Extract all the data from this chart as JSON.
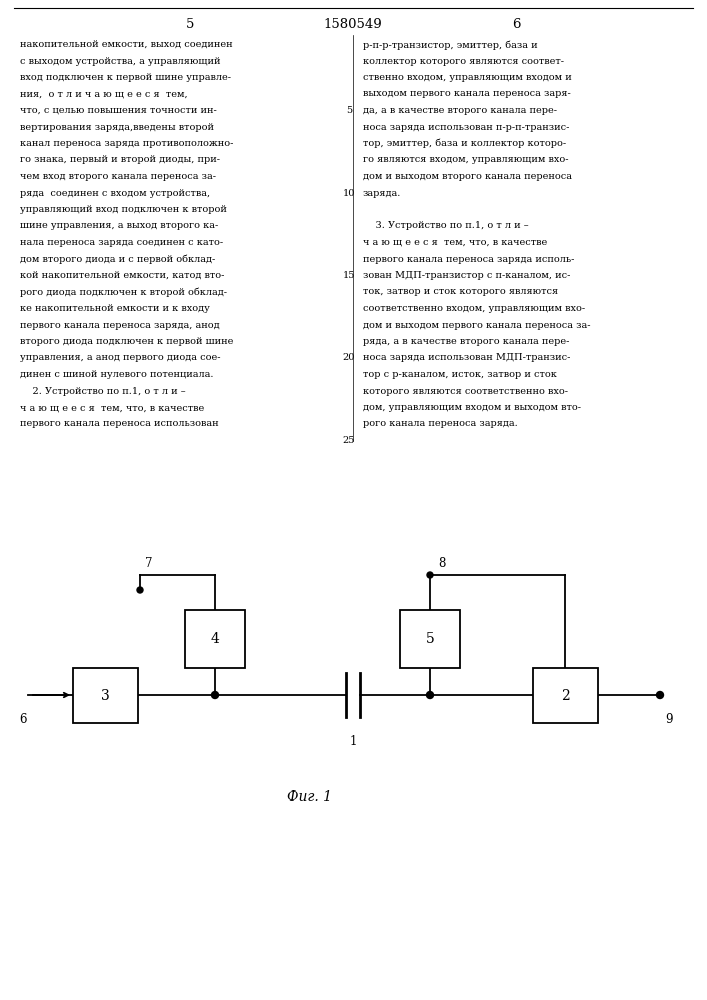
{
  "page_number_left": "5",
  "patent_number": "1580549",
  "page_number_right": "6",
  "text_left": [
    "накопительной емкости, выход соединен",
    "с выходом устройства, а управляющий",
    "вход подключен к первой шине управле-",
    "ния,  о т л и ч а ю щ е е с я  тем,",
    "что, с целью повышения точности ин-",
    "вертирования заряда,введены второй",
    "канал переноса заряда противоположно-",
    "го знака, первый и второй диоды, при-",
    "чем вход второго канала переноса за-",
    "ряда  соединен с входом устройства,",
    "управляющий вход подключен к второй",
    "шине управления, а выход второго ка-",
    "нала переноса заряда соединен с като-",
    "дом второго диода и с первой обклад-",
    "кой накопительной емкости, катод вто-",
    "рого диода подключен к второй обклад-",
    "ке накопительной емкости и к входу",
    "первого канала переноса заряда, анод",
    "второго диода подключен к первой шине",
    "управления, а анод первого диода сое-",
    "динен с шиной нулевого потенциала.",
    "    2. Устройство по п.1, о т л и –",
    "ч а ю щ е е с я  тем, что, в качестве",
    "первого канала переноса использован"
  ],
  "text_right": [
    "р-п-р-транзистор, эмиттер, база и",
    "коллектор которого являются соответ-",
    "ственно входом, управляющим входом и",
    "выходом первого канала переноса заря-",
    "да, а в качестве второго канала пере-",
    "носа заряда использован п-р-п-транзис-",
    "тор, эмиттер, база и коллектор которо-",
    "го являются входом, управляющим вхо-",
    "дом и выходом второго канала переноса",
    "заряда.",
    "",
    "    3. Устройство по п.1, о т л и –",
    "ч а ю щ е е с я  тем, что, в качестве",
    "первого канала переноса заряда исполь-",
    "зован МДП-транзистор с п-каналом, ис-",
    "ток, затвор и сток которого являются",
    "соответственно входом, управляющим вхо-",
    "дом и выходом первого канала переноса за-",
    "ряда, а в качестве второго канала пере-",
    "носа заряда использован МДП-транзис-",
    "тор с р-каналом, исток, затвор и сток",
    "которого являются соответственно вхо-",
    "дом, управляющим входом и выходом вто-",
    "рого канала переноса заряда."
  ],
  "line_numbers": [
    5,
    10,
    15,
    20,
    25
  ],
  "figure_label": "Фиг. 1",
  "bg_color": "#ffffff",
  "text_color": "#000000"
}
